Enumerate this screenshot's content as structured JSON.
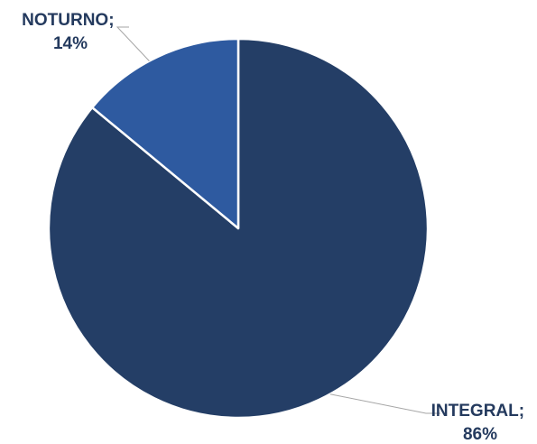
{
  "chart_data": {
    "type": "pie",
    "categories": [
      "INTEGRAL",
      "NOTURNO"
    ],
    "values": [
      86,
      14
    ],
    "unit": "%",
    "colors": [
      "#243e66",
      "#2e5aa0"
    ],
    "start_angle_deg": 0,
    "direction": "clockwise",
    "legend": "none",
    "slice_border_color": "#ffffff",
    "leader_line_color": "#a6a6a6",
    "labels": [
      {
        "category": "INTEGRAL;",
        "value": "86%"
      },
      {
        "category": "NOTURNO;",
        "value": "14%"
      }
    ]
  }
}
